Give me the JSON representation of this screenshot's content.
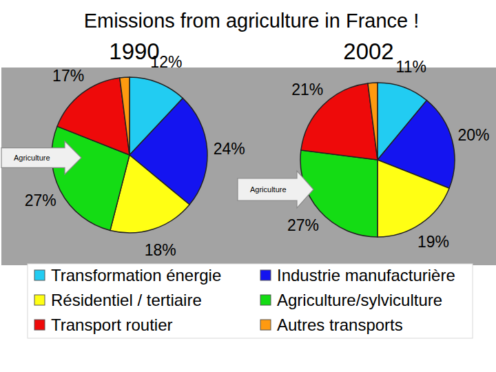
{
  "chart_data": {
    "type": "pie",
    "title": "Emissions from agriculture in France !",
    "annotation": "Agriculture",
    "categories": [
      "Transformation énergie",
      "Industrie manufacturière",
      "Résidentiel / tertiaire",
      "Agriculture/sylviculture",
      "Transport routier",
      "Autres transports"
    ],
    "colors": [
      "#22ccf2",
      "#1414f0",
      "#ffff14",
      "#14dc14",
      "#ee0a0a",
      "#ff9a10"
    ],
    "legend": "bottom",
    "data_labels": true,
    "series": [
      {
        "name": "1990",
        "values": [
          12,
          24,
          18,
          27,
          17,
          2
        ],
        "value_labels": [
          "12%",
          "24%",
          "18%",
          "27%",
          "17%",
          null
        ]
      },
      {
        "name": "2002",
        "values": [
          11,
          20,
          19,
          27,
          21,
          2
        ],
        "value_labels": [
          "11%",
          "20%",
          "19%",
          "27%",
          "21%",
          null
        ]
      }
    ]
  }
}
